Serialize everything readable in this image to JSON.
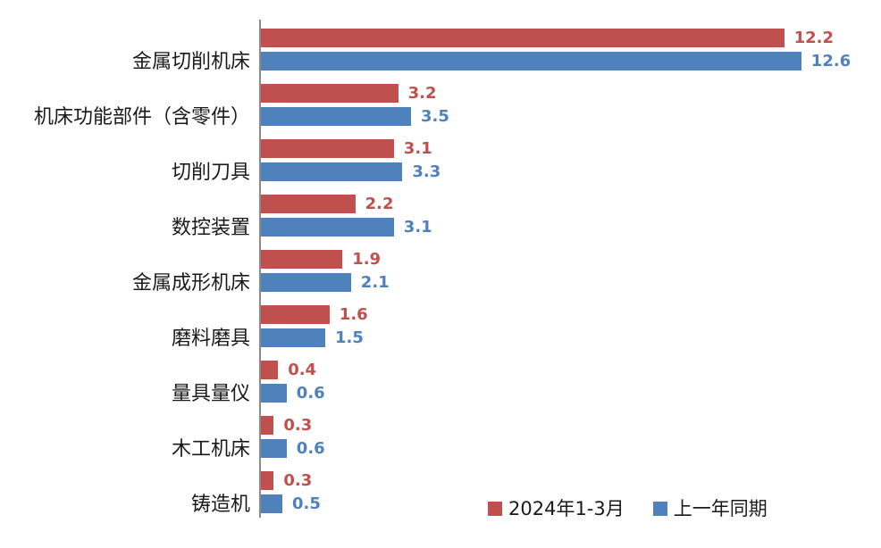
{
  "chart_data": {
    "type": "bar",
    "orientation": "horizontal",
    "title": "",
    "xlabel": "",
    "ylabel": "",
    "categories": [
      "金属切削机床",
      "机床功能部件（含零件）",
      "切削刀具",
      "数控装置",
      "金属成形机床",
      "磨料磨具",
      "量具量仪",
      "木工机床",
      "铸造机"
    ],
    "series": [
      {
        "name": "2024年1-3月",
        "color": "#C0504D",
        "values": [
          12.2,
          3.2,
          3.1,
          2.2,
          1.9,
          1.6,
          0.4,
          0.3,
          0.3
        ]
      },
      {
        "name": "上一年同期",
        "color": "#4F81BD",
        "values": [
          12.6,
          3.5,
          3.3,
          3.1,
          2.1,
          1.5,
          0.6,
          0.6,
          0.5
        ]
      }
    ],
    "xlim": [
      0,
      14.4
    ],
    "grid": false,
    "value_labels": true,
    "legend_position": "bottom"
  },
  "legend": {
    "items": [
      {
        "label": "2024年1-3月",
        "color": "#C0504D"
      },
      {
        "label": "上一年同期",
        "color": "#4F81BD"
      }
    ]
  },
  "colors": {
    "series_current": "#C0504D",
    "series_previous": "#4F81BD",
    "axis_line": "#8C8C8C",
    "category_text": "#1A1A1A"
  }
}
